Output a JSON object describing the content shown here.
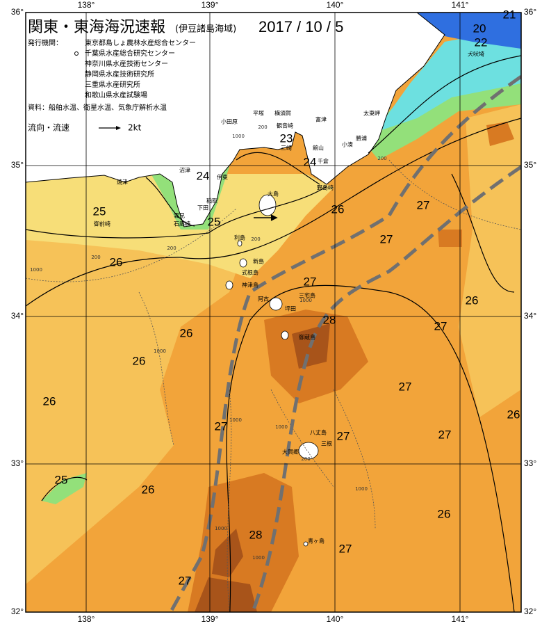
{
  "header": {
    "title": "関東・東海海況速報",
    "region": "(伊豆諸島海域)",
    "date": "2017 / 10 / 5"
  },
  "issuers": {
    "label": "発行機関：",
    "organizations": [
      "東京都島しょ農林水産総合センター",
      "千葉県水産総合研究センター",
      "神奈川県水産技術センター",
      "静岡県水産技術研究所",
      "三重県水産研究所",
      "和歌山県水産試験場"
    ]
  },
  "sources": "資料：船舶水温、衛星水温、気象庁解析水温",
  "legend": {
    "label": "流向・流速",
    "speed": "2kt"
  },
  "axes": {
    "longitude": [
      "138°",
      "139°",
      "140°",
      "141°"
    ],
    "latitude": [
      "36°",
      "35°",
      "34°",
      "33°",
      "32°"
    ]
  },
  "temperature_labels": [
    21,
    20,
    22,
    23,
    24,
    24,
    25,
    25,
    26,
    27,
    27,
    26,
    27,
    28,
    26,
    27,
    26,
    26,
    26,
    27,
    26,
    27,
    27,
    27,
    25,
    26,
    26,
    28,
    27,
    27
  ],
  "place_names": [
    "犬吠埼",
    "太東岬",
    "勝浦",
    "小湊",
    "富津",
    "館山",
    "千倉",
    "野島崎",
    "横須賀",
    "観音崎",
    "平塚",
    "小田原",
    "三崎",
    "伊東",
    "沼津",
    "焼津",
    "御前崎",
    "稲取",
    "下田",
    "雲見",
    "石廊崎",
    "大島",
    "利島",
    "新島",
    "式根島",
    "神津島",
    "三宅島",
    "阿古",
    "坪田",
    "御蔵島",
    "八丈島",
    "三根",
    "大賀郷",
    "青ヶ島"
  ],
  "depth_labels": [
    1000,
    200,
    200,
    200,
    200,
    1000,
    200,
    1000,
    1000,
    1000,
    200,
    1000,
    1000,
    1000,
    1000
  ]
}
